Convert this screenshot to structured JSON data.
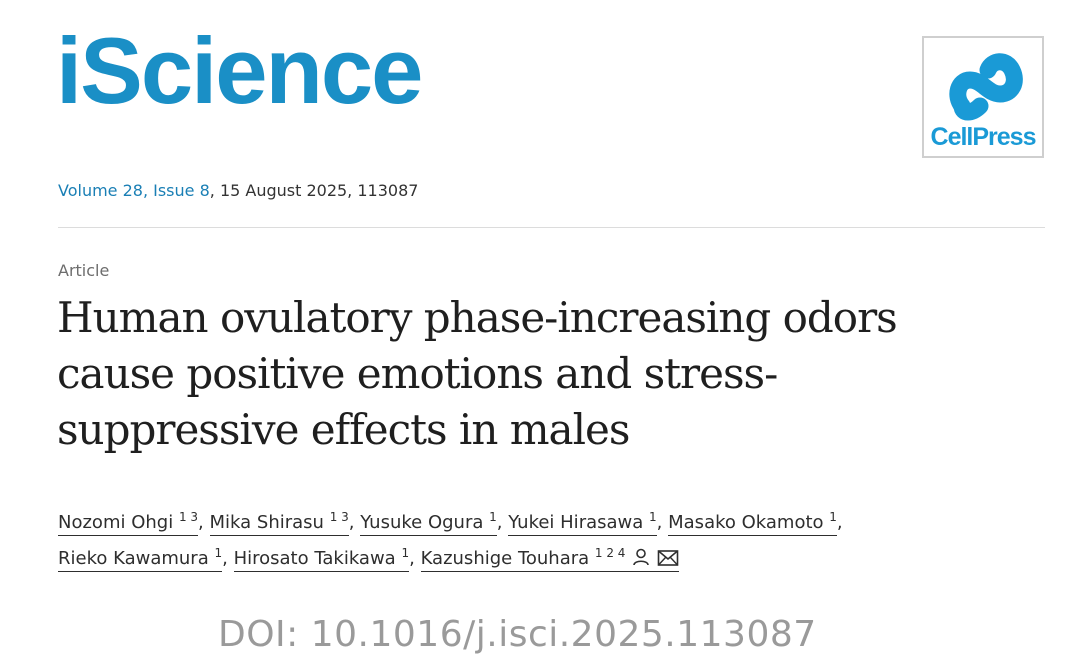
{
  "journal": {
    "name": "iScience",
    "publisher": "CellPress",
    "brand_color": "#1a8fc6"
  },
  "citation": {
    "volume_issue": "Volume 28, Issue 8",
    "rest": ", 15 August 2025, 113087"
  },
  "article": {
    "type": "Article",
    "title_lines": [
      "Human ovulatory phase-increasing odors",
      "cause positive emotions and stress-",
      "suppressive effects in males"
    ]
  },
  "authors": [
    {
      "name": "Nozomi Ohgi",
      "aff": "1 3"
    },
    {
      "name": "Mika Shirasu",
      "aff": "1 3"
    },
    {
      "name": "Yusuke Ogura",
      "aff": "1"
    },
    {
      "name": "Yukei Hirasawa",
      "aff": "1"
    },
    {
      "name": "Masako Okamoto",
      "aff": "1"
    },
    {
      "name": "Rieko Kawamura",
      "aff": "1"
    },
    {
      "name": "Hirosato Takikawa",
      "aff": "1"
    },
    {
      "name": "Kazushige Touhara",
      "aff": "1 2 4"
    }
  ],
  "separators": {
    "comma": ","
  },
  "icons": {
    "corresponding": "person-icon",
    "email": "envelope-icon"
  },
  "doi": "DOI: 10.1016/j.isci.2025.113087"
}
